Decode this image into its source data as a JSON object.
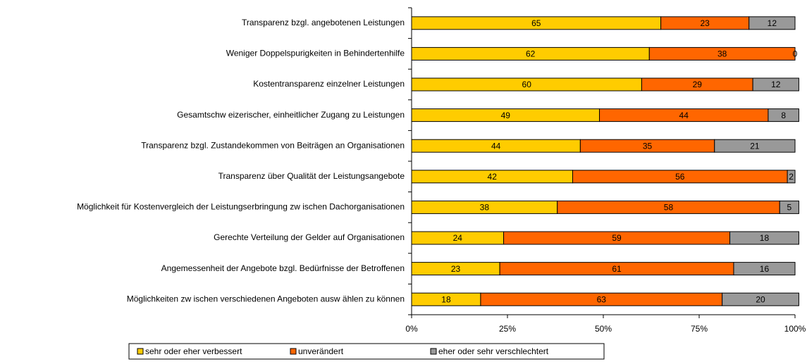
{
  "chart_data": {
    "type": "stacked_barh",
    "categories": [
      "Transparenz bzgl. angebotenen Leistungen",
      "Weniger Doppelspurigkeiten in Behindertenhilfe",
      "Kostentransparenz einzelner Leistungen",
      "Gesamtschw eizerischer, einheitlicher Zugang zu Leistungen",
      "Transparenz bzgl. Zustandekommen von Beiträgen an Organisationen",
      "Transparenz über Qualität der Leistungsangebote",
      "Möglichkeit für Kostenvergleich der Leistungserbringung zw ischen Dachorganisationen",
      "Gerechte Verteilung der Gelder auf Organisationen",
      "Angemessenheit der Angebote bzgl. Bedürfnisse der Betroffenen",
      "Möglichkeiten zw ischen verschiedenen Angeboten ausw ählen zu können"
    ],
    "series": [
      {
        "name": "sehr oder eher verbessert",
        "color": "#ffcc00",
        "values": [
          65,
          62,
          60,
          49,
          44,
          42,
          38,
          24,
          23,
          18
        ]
      },
      {
        "name": "unverändert",
        "color": "#ff6600",
        "values": [
          23,
          38,
          29,
          44,
          35,
          56,
          58,
          59,
          61,
          63
        ]
      },
      {
        "name": "eher oder sehr verschlechtert",
        "color": "#999999",
        "values": [
          12,
          0,
          12,
          8,
          21,
          2,
          5,
          18,
          16,
          20
        ]
      }
    ],
    "xlim": [
      0,
      100
    ],
    "xticks": [
      {
        "value": 0,
        "label": "0%"
      },
      {
        "value": 25,
        "label": "25%"
      },
      {
        "value": 50,
        "label": "50%"
      },
      {
        "value": 75,
        "label": "75%"
      },
      {
        "value": 100,
        "label": "100%"
      }
    ],
    "legend": "bottom"
  }
}
